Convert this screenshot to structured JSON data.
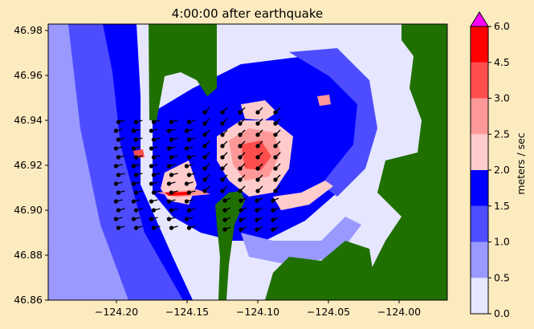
{
  "chart_data": {
    "type": "heatmap",
    "title": "4:00:00 after earthquake",
    "xlabel": "",
    "ylabel": "",
    "xlim": [
      -124.24,
      -123.98
    ],
    "ylim": [
      46.86,
      46.983
    ],
    "x_ticks": [
      "−124.20",
      "−124.15",
      "−124.10",
      "−124.05",
      "−124.00"
    ],
    "x_tick_values": [
      -124.2,
      -124.15,
      -124.1,
      -124.05,
      -124.0
    ],
    "y_ticks": [
      "46.86",
      "46.88",
      "46.90",
      "46.92",
      "46.94",
      "46.96",
      "46.98"
    ],
    "y_tick_values": [
      46.86,
      46.88,
      46.9,
      46.92,
      46.94,
      46.96,
      46.98
    ],
    "colorbar": {
      "label": "meters / sec",
      "levels": [
        0.0,
        0.5,
        1.0,
        1.5,
        2.0,
        2.5,
        3.0,
        4.5,
        6.0
      ],
      "tick_labels": [
        "0.0",
        "0.5",
        "1.0",
        "1.5",
        "2.0",
        "2.5",
        "3.0",
        "4.5",
        "6.0"
      ],
      "colors": [
        "#e6e6ff",
        "#9999ff",
        "#4d4dff",
        "#0000ff",
        "#ffcccc",
        "#ff9999",
        "#ff4d4d",
        "#ff0000"
      ],
      "extend_color": "#ff00ff"
    },
    "legend": "none",
    "grid": false
  },
  "colors": {
    "background": "#fdebc0",
    "land": "#1f7000",
    "offshore": "#8a8aff",
    "nearshore": "#4a4aff",
    "deep": "#e6e6ff"
  }
}
